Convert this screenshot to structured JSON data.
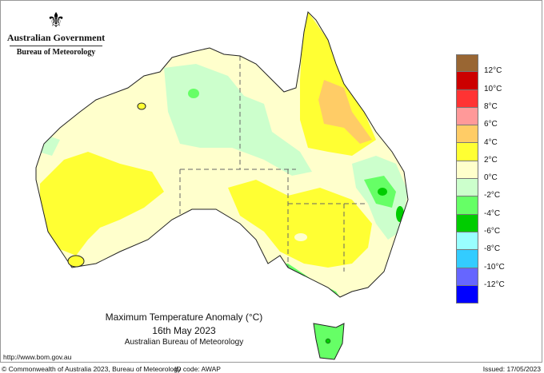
{
  "header": {
    "government": "Australian Government",
    "bureau": "Bureau of Meteorology"
  },
  "title": {
    "line1": "Maximum Temperature Anomaly (°C)",
    "line2": "16th May 2023",
    "line3": "Australian Bureau of Meteorology"
  },
  "legend": {
    "colors": [
      "#996633",
      "#CC0000",
      "#FF3333",
      "#FF9999",
      "#FFCC66",
      "#FFFF33",
      "#FFFFCC",
      "#CCFFCC",
      "#66FF66",
      "#00CC00",
      "#99FFFF",
      "#33CCFF",
      "#6666FF",
      "#0000FF"
    ],
    "labels": [
      "12°C",
      "10°C",
      "8°C",
      "6°C",
      "4°C",
      "2°C",
      "0°C",
      "-2°C",
      "-4°C",
      "-6°C",
      "-8°C",
      "-10°C",
      "-12°C"
    ]
  },
  "footer": {
    "url": "http://www.bom.gov.au",
    "copyright": "© Commonwealth of Australia 2023, Bureau of Meteorology",
    "id_code": "ID code: AWAP",
    "issued": "Issued: 17/05/2023"
  }
}
